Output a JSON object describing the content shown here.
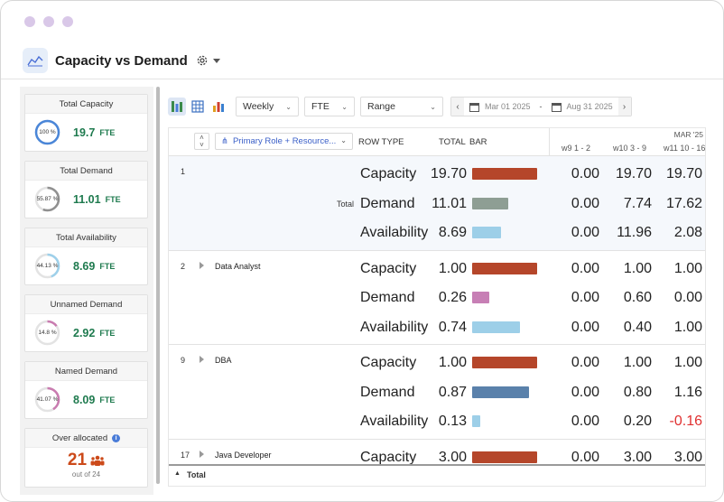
{
  "window": {
    "title": "Capacity vs Demand"
  },
  "sidebar": {
    "cards": [
      {
        "title": "Total Capacity",
        "percent_label": "100 %",
        "percent": 100,
        "value": "19.7",
        "unit": "FTE",
        "ring_color": "#4a86d8"
      },
      {
        "title": "Total Demand",
        "percent_label": "55.87 %",
        "percent": 55.87,
        "value": "11.01",
        "unit": "FTE",
        "ring_color": "#909090"
      },
      {
        "title": "Total Availability",
        "percent_label": "44.13 %",
        "percent": 44.13,
        "value": "8.69",
        "unit": "FTE",
        "ring_color": "#9dd0ea"
      },
      {
        "title": "Unnamed Demand",
        "percent_label": "14.8 %",
        "percent": 14.8,
        "value": "2.92",
        "unit": "FTE",
        "ring_color": "#c97bb0"
      },
      {
        "title": "Named Demand",
        "percent_label": "41.07 %",
        "percent": 41.07,
        "value": "8.09",
        "unit": "FTE",
        "ring_color": "#c97bb0"
      }
    ],
    "over_allocated": {
      "title": "Over allocated",
      "count": "21",
      "sub": "out of 24"
    }
  },
  "toolbar": {
    "period": "Weekly",
    "unit": "FTE",
    "range": "Range",
    "start_date": "Mar 01 2025",
    "date_separator": "-",
    "end_date": "Aug 31 2025"
  },
  "grid": {
    "group_by": "Primary Role + Resource...",
    "headers": {
      "row_type": "ROW TYPE",
      "total": "TOTAL",
      "bar": "BAR"
    },
    "month_label": "MAR '25",
    "week_labels": [
      "w9 1 - 2",
      "w10 3 - 9",
      "w11 10 - 16"
    ],
    "groups": [
      {
        "index": "1",
        "name": "",
        "label": "Total",
        "rows": [
          {
            "type": "Capacity",
            "total": "19.70",
            "w": [
              "0.00",
              "19.70",
              "19.70"
            ]
          },
          {
            "type": "Demand",
            "total": "11.01",
            "w": [
              "0.00",
              "7.74",
              "17.62"
            ]
          },
          {
            "type": "Availability",
            "total": "8.69",
            "w": [
              "0.00",
              "11.96",
              "2.08"
            ]
          }
        ]
      },
      {
        "index": "2",
        "name": "Data Analyst",
        "label": "",
        "rows": [
          {
            "type": "Capacity",
            "total": "1.00",
            "w": [
              "0.00",
              "1.00",
              "1.00"
            ]
          },
          {
            "type": "Demand",
            "total": "0.26",
            "w": [
              "0.00",
              "0.60",
              "0.00"
            ]
          },
          {
            "type": "Availability",
            "total": "0.74",
            "w": [
              "0.00",
              "0.40",
              "1.00"
            ]
          }
        ]
      },
      {
        "index": "9",
        "name": "DBA",
        "label": "",
        "rows": [
          {
            "type": "Capacity",
            "total": "1.00",
            "w": [
              "0.00",
              "1.00",
              "1.00"
            ]
          },
          {
            "type": "Demand",
            "total": "0.87",
            "w": [
              "0.00",
              "0.80",
              "1.16"
            ]
          },
          {
            "type": "Availability",
            "total": "0.13",
            "w": [
              "0.00",
              "0.20",
              "-0.16"
            ]
          }
        ]
      },
      {
        "index": "17",
        "name": "Java Developer",
        "label": "",
        "rows": [
          {
            "type": "Capacity",
            "total": "3.00",
            "w": [
              "0.00",
              "3.00",
              "3.00"
            ]
          }
        ]
      }
    ],
    "footer_label": "Total"
  },
  "colors": {
    "capacity_bar": "#b5462a",
    "total_demand_bar": "#8e9e94",
    "availability_bar": "#9dcfe8",
    "analyst_demand_bar": "#c77fb5",
    "dba_demand_bar": "#5a81ab",
    "negative": "#e03030",
    "fte_green": "#1e7a4e",
    "accent_blue": "#3a5fc8"
  }
}
